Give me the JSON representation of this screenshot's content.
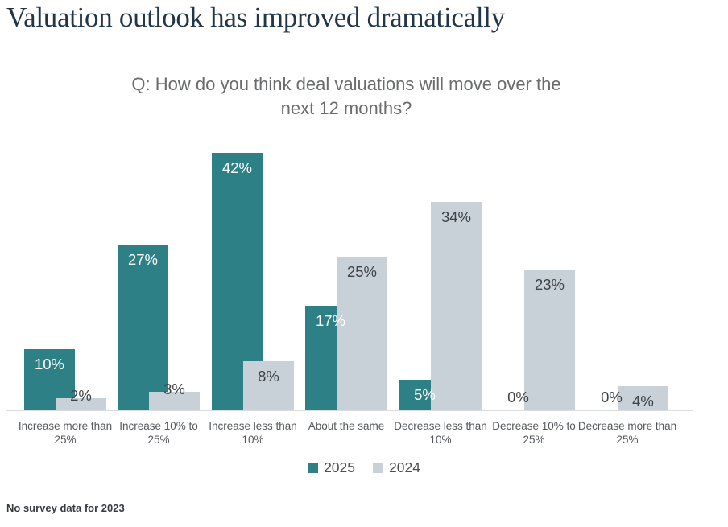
{
  "page": {
    "title": "Valuation outlook has improved dramatically",
    "question_line1": "Q: How do you think deal valuations will move over the",
    "question_line2": "next 12 months?",
    "footnote": "No survey data for 2023"
  },
  "colors": {
    "accent_teal": "#2e8087",
    "neutral_gray": "#c8d1d8",
    "title_text": "#213647",
    "question_text": "#696b6d",
    "value_label_dark": "#3f4347",
    "value_label_light": "#ffffff",
    "category_text": "#55595d",
    "legend_text": "#4b4f53",
    "footnote_text": "#393c3f",
    "axis_line": "#dadde1"
  },
  "chart_data": {
    "type": "bar",
    "title": "Q: How do you think deal valuations will move over the next 12 months?",
    "categories": [
      "Increase more than 25%",
      "Increase 10% to 25%",
      "Increase less than 10%",
      "About the same",
      "Decrease less than 10%",
      "Decrease 10% to 25%",
      "Decrease more than 25%"
    ],
    "series": [
      {
        "name": "2025",
        "color": "#2e8087",
        "values": [
          10,
          27,
          42,
          17,
          5,
          0,
          0
        ]
      },
      {
        "name": "2024",
        "color": "#c8d1d8",
        "values": [
          2,
          3,
          8,
          25,
          34,
          23,
          4
        ]
      }
    ],
    "value_suffix": "%",
    "ylim": [
      0,
      46
    ],
    "grid": false,
    "legend_position": "bottom",
    "footnote": "No survey data for 2023"
  }
}
